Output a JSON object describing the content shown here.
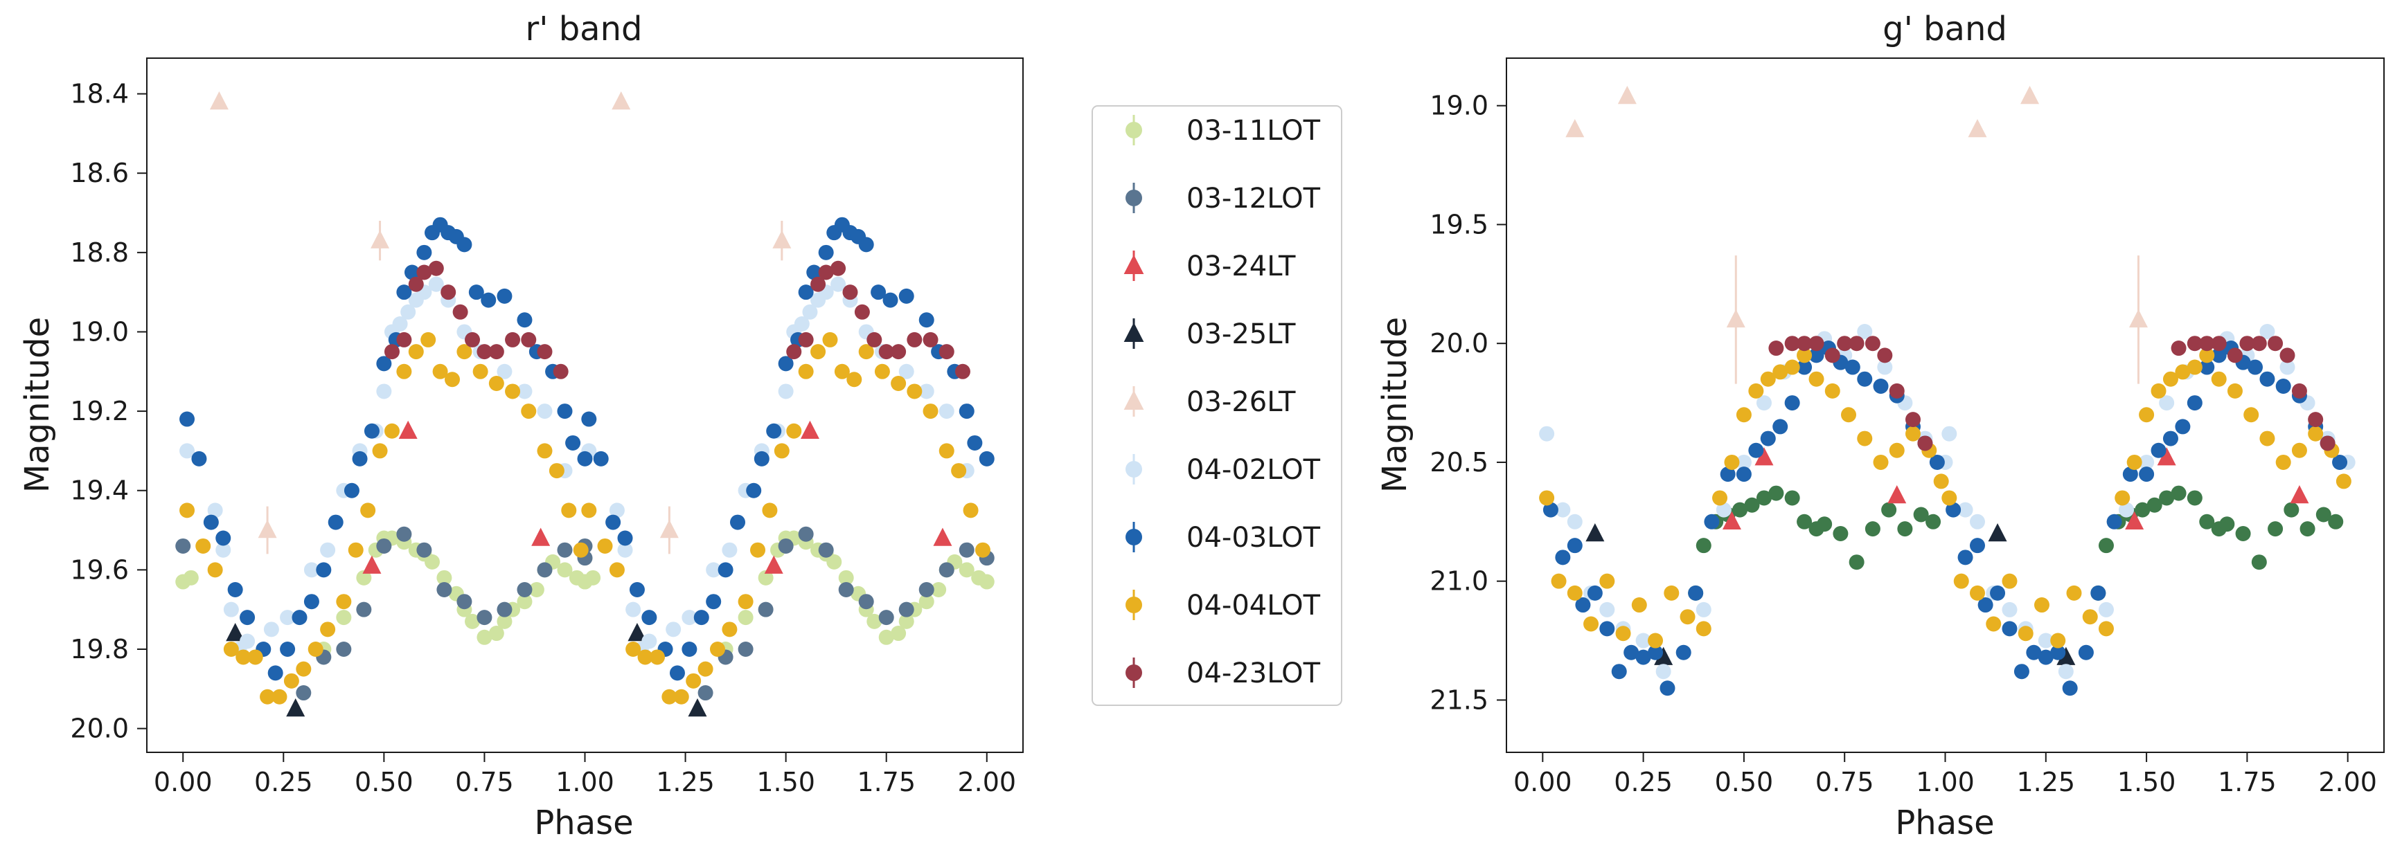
{
  "chart_data": [
    {
      "type": "scatter",
      "title": "r' band",
      "xlabel": "Phase",
      "ylabel": "Magnitude",
      "xlim": [
        -0.09,
        2.09
      ],
      "ylim": [
        20.06,
        18.31
      ],
      "y_inverted": true,
      "xticks": [
        "0.00",
        "0.25",
        "0.50",
        "0.75",
        "1.00",
        "1.25",
        "1.50",
        "1.75",
        "2.00"
      ],
      "yticks": [
        "18.4",
        "18.6",
        "18.8",
        "19.0",
        "19.2",
        "19.4",
        "19.6",
        "19.8",
        "20.0"
      ],
      "series": [
        {
          "name": "03-11LOT",
          "color": "#cfe3a0",
          "marker": "circle",
          "x": [
            0.0,
            0.02,
            0.35,
            0.4,
            0.45,
            0.48,
            0.5,
            0.52,
            0.55,
            0.58,
            0.6,
            0.62,
            0.65,
            0.68,
            0.7,
            0.72,
            0.75,
            0.78,
            0.8,
            0.82,
            0.85,
            0.88,
            0.9,
            0.92,
            0.95,
            0.98,
            1.0
          ],
          "y": [
            19.63,
            19.62,
            19.8,
            19.72,
            19.62,
            19.55,
            19.52,
            19.52,
            19.53,
            19.55,
            19.56,
            19.58,
            19.62,
            19.66,
            19.7,
            19.73,
            19.77,
            19.76,
            19.73,
            19.7,
            19.68,
            19.65,
            19.6,
            19.58,
            19.6,
            19.62,
            19.63
          ]
        },
        {
          "name": "03-12LOT",
          "color": "#5a7590",
          "marker": "circle",
          "x": [
            0.0,
            0.3,
            0.35,
            0.4,
            0.45,
            0.5,
            0.55,
            0.6,
            0.65,
            0.7,
            0.75,
            0.8,
            0.85,
            0.9,
            0.95,
            1.0
          ],
          "y": [
            19.54,
            19.91,
            19.82,
            19.8,
            19.7,
            19.54,
            19.51,
            19.55,
            19.65,
            19.68,
            19.72,
            19.7,
            19.65,
            19.6,
            19.55,
            19.57
          ]
        },
        {
          "name": "03-24LT",
          "color": "#e04a52",
          "marker": "triangle",
          "x": [
            0.47,
            0.56,
            0.89
          ],
          "y": [
            19.59,
            19.25,
            19.52
          ]
        },
        {
          "name": "03-25LT",
          "color": "#1c2838",
          "marker": "triangle",
          "x": [
            0.13,
            0.28
          ],
          "y": [
            19.76,
            19.95
          ]
        },
        {
          "name": "03-26LT",
          "color": "#f0d4c8",
          "marker": "triangle",
          "x": [
            0.09,
            0.21,
            0.49
          ],
          "y": [
            18.42,
            19.5,
            18.77
          ],
          "yerr": [
            0.0,
            0.06,
            0.05
          ]
        },
        {
          "name": "04-02LOT",
          "color": "#cfe3f5",
          "marker": "circle",
          "x": [
            0.01,
            0.08,
            0.1,
            0.12,
            0.14,
            0.16,
            0.18,
            0.22,
            0.26,
            0.32,
            0.36,
            0.4,
            0.44,
            0.48,
            0.5,
            0.52,
            0.54,
            0.56,
            0.58,
            0.6,
            0.63,
            0.66,
            0.7,
            0.74,
            0.8,
            0.85,
            0.9,
            0.95
          ],
          "y": [
            19.3,
            19.45,
            19.55,
            19.7,
            19.8,
            19.78,
            19.82,
            19.75,
            19.72,
            19.6,
            19.55,
            19.4,
            19.3,
            19.25,
            19.15,
            19.0,
            18.98,
            18.95,
            18.92,
            18.9,
            18.88,
            18.92,
            19.0,
            19.05,
            19.1,
            19.15,
            19.2,
            19.35
          ]
        },
        {
          "name": "04-03LOT",
          "color": "#1f63ae",
          "marker": "circle",
          "x": [
            0.01,
            0.04,
            0.07,
            0.1,
            0.13,
            0.16,
            0.2,
            0.23,
            0.26,
            0.29,
            0.32,
            0.35,
            0.38,
            0.42,
            0.44,
            0.47,
            0.5,
            0.53,
            0.55,
            0.57,
            0.6,
            0.62,
            0.64,
            0.66,
            0.68,
            0.7,
            0.73,
            0.76,
            0.8,
            0.85,
            0.88,
            0.92,
            0.95,
            0.97,
            1.0
          ],
          "y": [
            19.22,
            19.32,
            19.48,
            19.52,
            19.65,
            19.72,
            19.8,
            19.86,
            19.8,
            19.72,
            19.68,
            19.6,
            19.48,
            19.4,
            19.32,
            19.25,
            19.08,
            19.02,
            18.9,
            18.85,
            18.8,
            18.75,
            18.73,
            18.75,
            18.76,
            18.78,
            18.9,
            18.92,
            18.91,
            18.97,
            19.05,
            19.1,
            19.2,
            19.28,
            19.32
          ]
        },
        {
          "name": "04-04LOT",
          "color": "#e8b020",
          "marker": "circle",
          "x": [
            0.01,
            0.05,
            0.08,
            0.12,
            0.15,
            0.18,
            0.21,
            0.24,
            0.27,
            0.3,
            0.33,
            0.36,
            0.4,
            0.43,
            0.46,
            0.49,
            0.52,
            0.55,
            0.58,
            0.61,
            0.64,
            0.67,
            0.7,
            0.74,
            0.78,
            0.82,
            0.86,
            0.9,
            0.93,
            0.96,
            0.99
          ],
          "y": [
            19.45,
            19.54,
            19.6,
            19.8,
            19.82,
            19.82,
            19.92,
            19.92,
            19.88,
            19.85,
            19.8,
            19.75,
            19.68,
            19.55,
            19.45,
            19.3,
            19.25,
            19.1,
            19.05,
            19.02,
            19.1,
            19.12,
            19.05,
            19.1,
            19.13,
            19.15,
            19.2,
            19.3,
            19.35,
            19.45,
            19.55
          ]
        },
        {
          "name": "04-23LOT",
          "color": "#9a3a48",
          "marker": "circle",
          "x": [
            0.52,
            0.55,
            0.58,
            0.6,
            0.63,
            0.66,
            0.69,
            0.72,
            0.75,
            0.78,
            0.82,
            0.86,
            0.9,
            0.94
          ],
          "y": [
            19.05,
            19.02,
            18.88,
            18.85,
            18.84,
            18.9,
            18.95,
            19.02,
            19.05,
            19.05,
            19.02,
            19.02,
            19.05,
            19.1
          ]
        }
      ]
    },
    {
      "type": "scatter",
      "title": "g' band",
      "xlabel": "Phase",
      "ylabel": "Magnitude",
      "xlim": [
        -0.09,
        2.09
      ],
      "ylim": [
        21.72,
        18.8
      ],
      "y_inverted": true,
      "xticks": [
        "0.00",
        "0.25",
        "0.50",
        "0.75",
        "1.00",
        "1.25",
        "1.50",
        "1.75",
        "2.00"
      ],
      "yticks": [
        "19.0",
        "19.5",
        "20.0",
        "20.5",
        "21.0",
        "21.5"
      ],
      "series": [
        {
          "name": "",
          "color": "#3e7a4a",
          "marker": "circle",
          "x": [
            0.38,
            0.4,
            0.43,
            0.46,
            0.49,
            0.52,
            0.55,
            0.58,
            0.62,
            0.65,
            0.68,
            0.7,
            0.74,
            0.78,
            0.82,
            0.86,
            0.9,
            0.94,
            0.97
          ],
          "y": [
            21.05,
            20.85,
            20.75,
            20.72,
            20.7,
            20.68,
            20.65,
            20.63,
            20.65,
            20.75,
            20.78,
            20.76,
            20.8,
            20.92,
            20.78,
            20.7,
            20.78,
            20.72,
            20.75
          ]
        },
        {
          "name": "03-24LT",
          "color": "#e04a52",
          "marker": "triangle",
          "x": [
            0.47,
            0.55,
            0.88
          ],
          "y": [
            20.75,
            20.48,
            20.64
          ]
        },
        {
          "name": "03-25LT",
          "color": "#1c2838",
          "marker": "triangle",
          "x": [
            0.13,
            0.3
          ],
          "y": [
            20.8,
            21.32
          ]
        },
        {
          "name": "03-26LT",
          "color": "#f0d4c8",
          "marker": "triangle",
          "x": [
            0.08,
            0.21,
            0.48
          ],
          "y": [
            19.1,
            18.96,
            19.9
          ],
          "yerr": [
            0.0,
            0.0,
            0.27
          ]
        },
        {
          "name": "04-02LOT",
          "color": "#cfe3f5",
          "marker": "circle",
          "x": [
            0.01,
            0.05,
            0.08,
            0.12,
            0.16,
            0.2,
            0.25,
            0.3,
            0.35,
            0.4,
            0.45,
            0.5,
            0.55,
            0.6,
            0.65,
            0.7,
            0.75,
            0.8,
            0.85,
            0.9,
            0.95,
            1.0
          ],
          "y": [
            20.38,
            20.7,
            20.75,
            21.05,
            21.12,
            21.2,
            21.25,
            21.38,
            21.3,
            21.12,
            20.7,
            20.5,
            20.25,
            20.12,
            20.05,
            19.98,
            20.05,
            19.95,
            20.1,
            20.25,
            20.4,
            20.5
          ]
        },
        {
          "name": "04-03LOT",
          "color": "#1f63ae",
          "marker": "circle",
          "x": [
            0.02,
            0.05,
            0.08,
            0.1,
            0.13,
            0.16,
            0.19,
            0.22,
            0.25,
            0.28,
            0.31,
            0.35,
            0.38,
            0.42,
            0.46,
            0.5,
            0.53,
            0.56,
            0.59,
            0.62,
            0.65,
            0.68,
            0.71,
            0.74,
            0.77,
            0.8,
            0.84,
            0.88,
            0.92,
            0.95,
            0.98
          ],
          "y": [
            20.7,
            20.9,
            20.85,
            21.1,
            21.05,
            21.2,
            21.38,
            21.3,
            21.32,
            21.3,
            21.45,
            21.3,
            21.05,
            20.75,
            20.55,
            20.55,
            20.45,
            20.4,
            20.35,
            20.25,
            20.1,
            20.05,
            20.02,
            20.08,
            20.1,
            20.15,
            20.18,
            20.22,
            20.35,
            20.42,
            20.5
          ]
        },
        {
          "name": "04-04LOT",
          "color": "#e8b020",
          "marker": "circle",
          "x": [
            0.01,
            0.04,
            0.08,
            0.12,
            0.16,
            0.2,
            0.24,
            0.28,
            0.32,
            0.36,
            0.4,
            0.44,
            0.47,
            0.5,
            0.53,
            0.56,
            0.59,
            0.62,
            0.65,
            0.68,
            0.72,
            0.76,
            0.8,
            0.84,
            0.88,
            0.92,
            0.96,
            0.99
          ],
          "y": [
            20.65,
            21.0,
            21.05,
            21.18,
            21.0,
            21.22,
            21.1,
            21.25,
            21.05,
            21.15,
            21.2,
            20.65,
            20.5,
            20.3,
            20.2,
            20.15,
            20.12,
            20.1,
            20.05,
            20.15,
            20.2,
            20.3,
            20.4,
            20.5,
            20.45,
            20.38,
            20.45,
            20.58
          ]
        },
        {
          "name": "04-23LOT",
          "color": "#9a3a48",
          "marker": "circle",
          "x": [
            0.58,
            0.62,
            0.65,
            0.68,
            0.72,
            0.75,
            0.78,
            0.82,
            0.85,
            0.88,
            0.92,
            0.95
          ],
          "y": [
            20.02,
            20.0,
            20.0,
            20.0,
            20.05,
            20.0,
            20.0,
            20.0,
            20.05,
            20.2,
            20.32,
            20.42
          ]
        }
      ]
    }
  ],
  "legend": {
    "placement": "between-panels",
    "entries": [
      {
        "label": "03-11LOT",
        "color": "#cfe3a0",
        "marker": "circle"
      },
      {
        "label": "03-12LOT",
        "color": "#5a7590",
        "marker": "circle"
      },
      {
        "label": "03-24LT",
        "color": "#e04a52",
        "marker": "triangle"
      },
      {
        "label": "03-25LT",
        "color": "#1c2838",
        "marker": "triangle"
      },
      {
        "label": "03-26LT",
        "color": "#f0d4c8",
        "marker": "triangle"
      },
      {
        "label": "04-02LOT",
        "color": "#cfe3f5",
        "marker": "circle"
      },
      {
        "label": "04-03LOT",
        "color": "#1f63ae",
        "marker": "circle"
      },
      {
        "label": "04-04LOT",
        "color": "#e8b020",
        "marker": "circle"
      },
      {
        "label": "04-23LOT",
        "color": "#9a3a48",
        "marker": "circle"
      }
    ]
  }
}
